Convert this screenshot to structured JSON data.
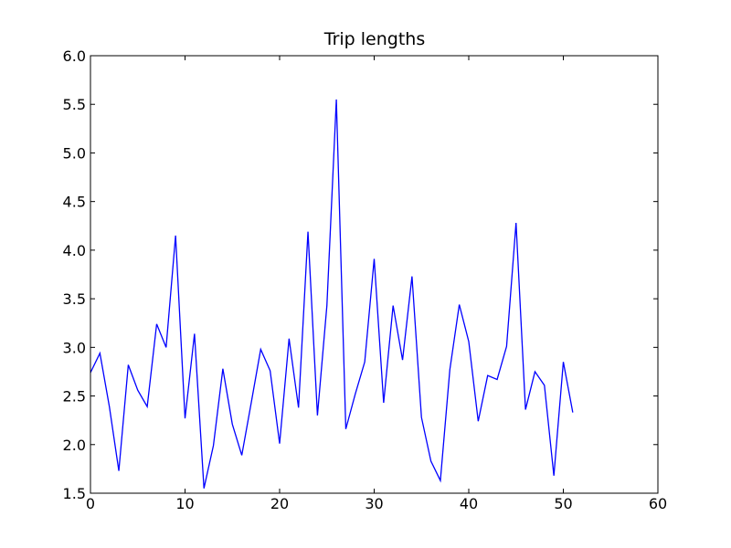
{
  "chart_data": {
    "type": "line",
    "title": "Trip lengths",
    "xlabel": "",
    "ylabel": "",
    "xlim": [
      0,
      60
    ],
    "ylim": [
      1.5,
      6.0
    ],
    "x_ticks": [
      "0",
      "10",
      "20",
      "30",
      "40",
      "50",
      "60"
    ],
    "y_ticks": [
      "1.5",
      "2.0",
      "2.5",
      "3.0",
      "3.5",
      "4.0",
      "4.5",
      "5.0",
      "5.5",
      "6.0"
    ],
    "grid": false,
    "legend": "none",
    "series": [
      {
        "color": "#0000ff",
        "x": [
          0,
          1,
          2,
          3,
          4,
          5,
          6,
          7,
          8,
          9,
          10,
          11,
          12,
          13,
          14,
          15,
          16,
          17,
          18,
          19,
          20,
          21,
          22,
          23,
          24,
          25,
          26,
          27,
          28,
          29,
          30,
          31,
          32,
          33,
          34,
          35,
          36,
          37,
          38,
          39,
          40,
          41,
          42,
          43,
          44,
          45,
          46,
          47,
          48,
          49,
          50,
          51
        ],
        "values": [
          2.74,
          2.94,
          2.39,
          1.73,
          2.82,
          2.56,
          2.39,
          3.24,
          3.0,
          4.15,
          2.27,
          3.14,
          1.55,
          1.99,
          2.78,
          2.21,
          1.89,
          2.43,
          2.98,
          2.76,
          2.01,
          3.09,
          2.38,
          4.19,
          2.3,
          3.43,
          5.55,
          2.16,
          2.52,
          2.85,
          3.91,
          2.43,
          3.43,
          2.87,
          3.73,
          2.28,
          1.83,
          1.63,
          2.77,
          3.44,
          3.06,
          2.24,
          2.71,
          2.67,
          3.01,
          4.28,
          2.36,
          2.75,
          2.61,
          1.68,
          2.85,
          2.33
        ]
      }
    ]
  }
}
